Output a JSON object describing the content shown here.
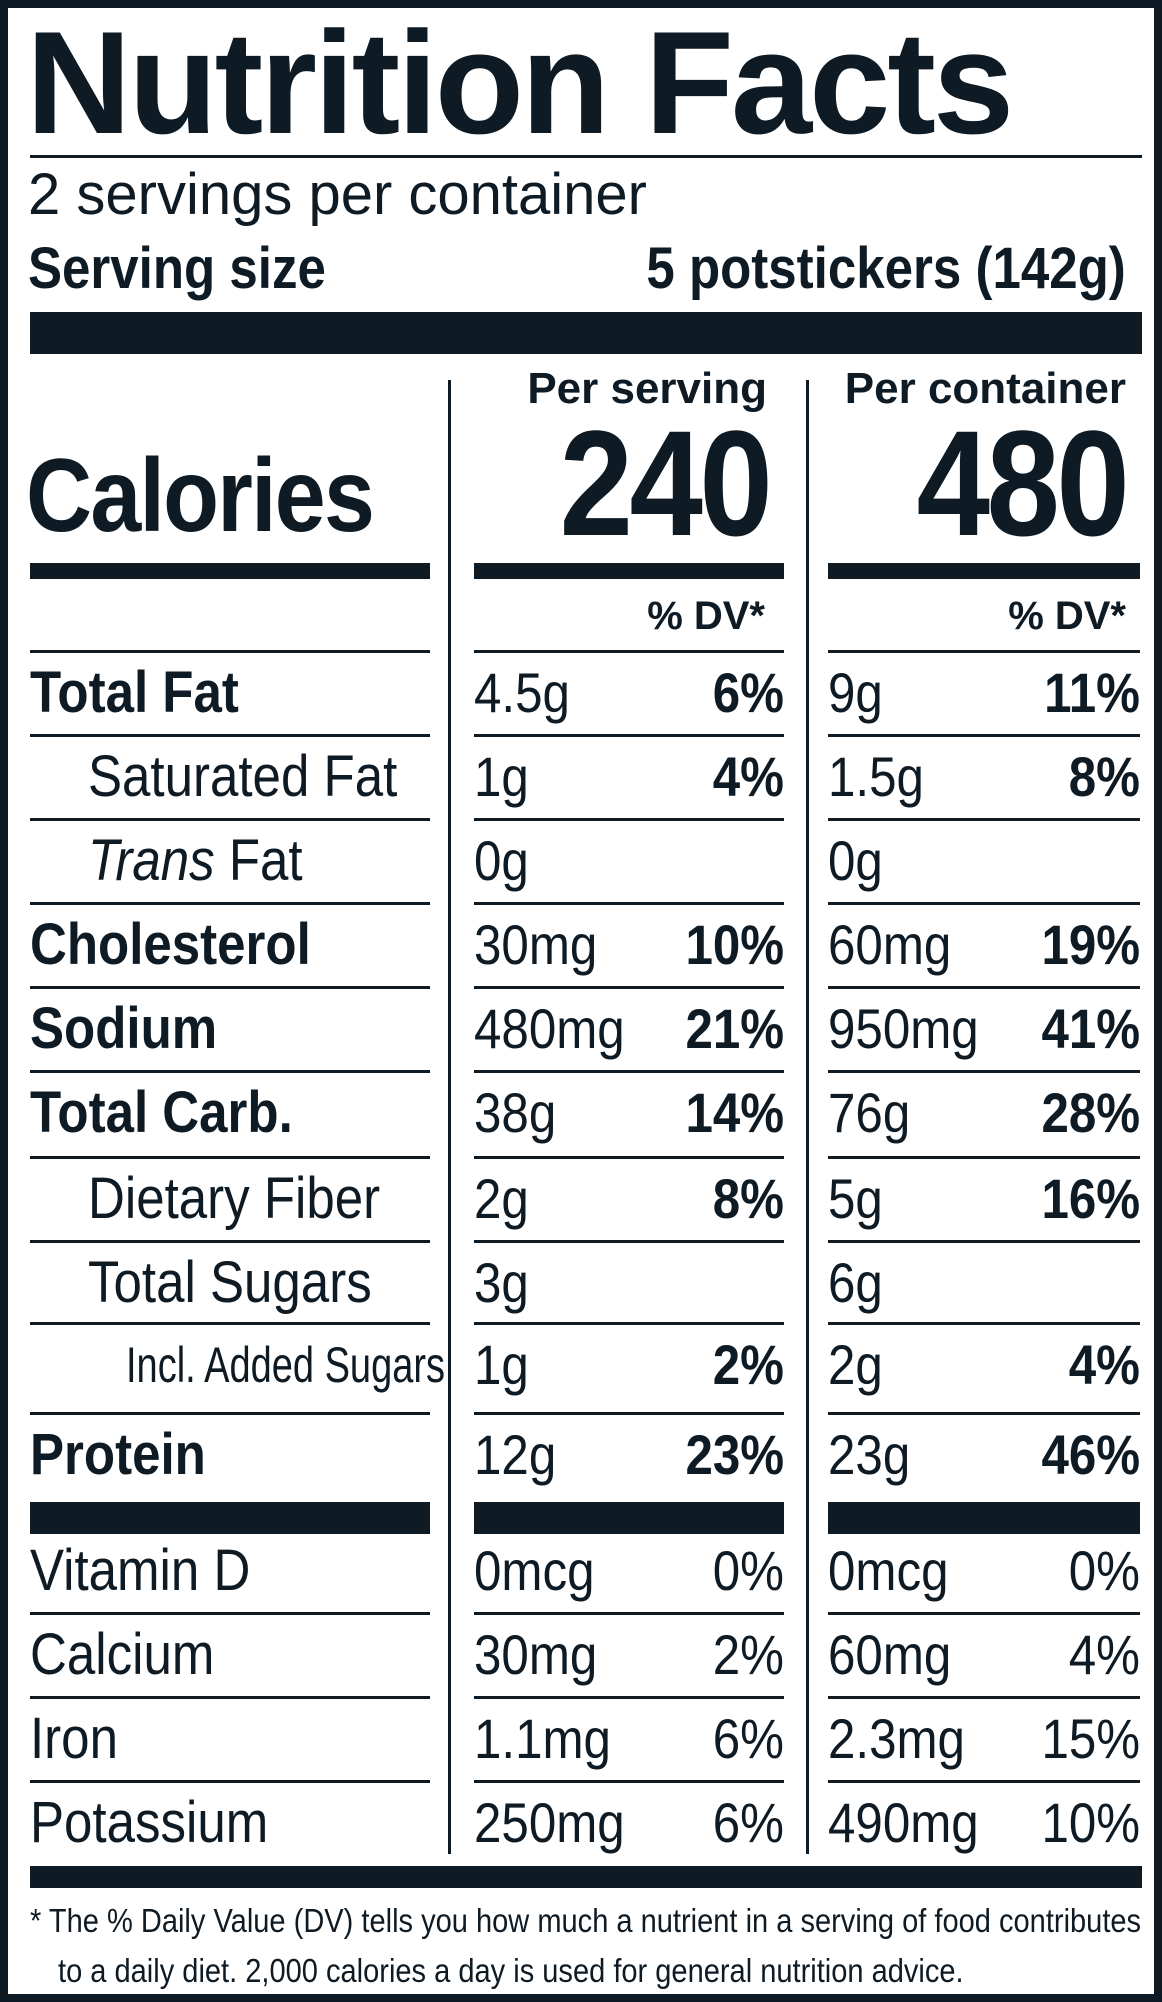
{
  "label": {
    "title": "Nutrition Facts",
    "servings_per_container": "2 servings per container",
    "serving_size_label": "Serving size",
    "serving_size_value": "5 potstickers (142g)",
    "col_serving_header": "Per serving",
    "col_container_header": "Per container",
    "calories_label": "Calories",
    "calories_serving": "240",
    "calories_container": "480",
    "dv_header": "% DV*",
    "nutrients": [
      {
        "name": "Total Fat",
        "serving_amount": "4.5g",
        "serving_dv": "6%",
        "container_amount": "9g",
        "container_dv": "11%"
      },
      {
        "name": "Saturated Fat",
        "serving_amount": "1g",
        "serving_dv": "4%",
        "container_amount": "1.5g",
        "container_dv": "8%"
      },
      {
        "name_prefix": "Trans",
        "name": "Fat",
        "serving_amount": "0g",
        "serving_dv": "",
        "container_amount": "0g",
        "container_dv": ""
      },
      {
        "name": "Cholesterol",
        "serving_amount": "30mg",
        "serving_dv": "10%",
        "container_amount": "60mg",
        "container_dv": "19%"
      },
      {
        "name": "Sodium",
        "serving_amount": "480mg",
        "serving_dv": "21%",
        "container_amount": "950mg",
        "container_dv": "41%"
      },
      {
        "name": "Total Carb.",
        "serving_amount": "38g",
        "serving_dv": "14%",
        "container_amount": "76g",
        "container_dv": "28%"
      },
      {
        "name": "Dietary Fiber",
        "serving_amount": "2g",
        "serving_dv": "8%",
        "container_amount": "5g",
        "container_dv": "16%"
      },
      {
        "name": "Total Sugars",
        "serving_amount": "3g",
        "serving_dv": "",
        "container_amount": "6g",
        "container_dv": ""
      },
      {
        "name": "Incl. Added Sugars",
        "serving_amount": "1g",
        "serving_dv": "2%",
        "container_amount": "2g",
        "container_dv": "4%"
      },
      {
        "name": "Protein",
        "serving_amount": "12g",
        "serving_dv": "23%",
        "container_amount": "23g",
        "container_dv": "46%"
      }
    ],
    "vitamins": [
      {
        "name": "Vitamin D",
        "serving_amount": "0mcg",
        "serving_dv": "0%",
        "container_amount": "0mcg",
        "container_dv": "0%"
      },
      {
        "name": "Calcium",
        "serving_amount": "30mg",
        "serving_dv": "2%",
        "container_amount": "60mg",
        "container_dv": "4%"
      },
      {
        "name": "Iron",
        "serving_amount": "1.1mg",
        "serving_dv": "6%",
        "container_amount": "2.3mg",
        "container_dv": "15%"
      },
      {
        "name": "Potassium",
        "serving_amount": "250mg",
        "serving_dv": "6%",
        "container_amount": "490mg",
        "container_dv": "10%"
      }
    ],
    "footnote_line1": "* The % Daily Value (DV) tells you how much a nutrient in a serving of food contributes",
    "footnote_line2": "to a daily diet. 2,000 calories a day is used for general nutrition advice."
  }
}
